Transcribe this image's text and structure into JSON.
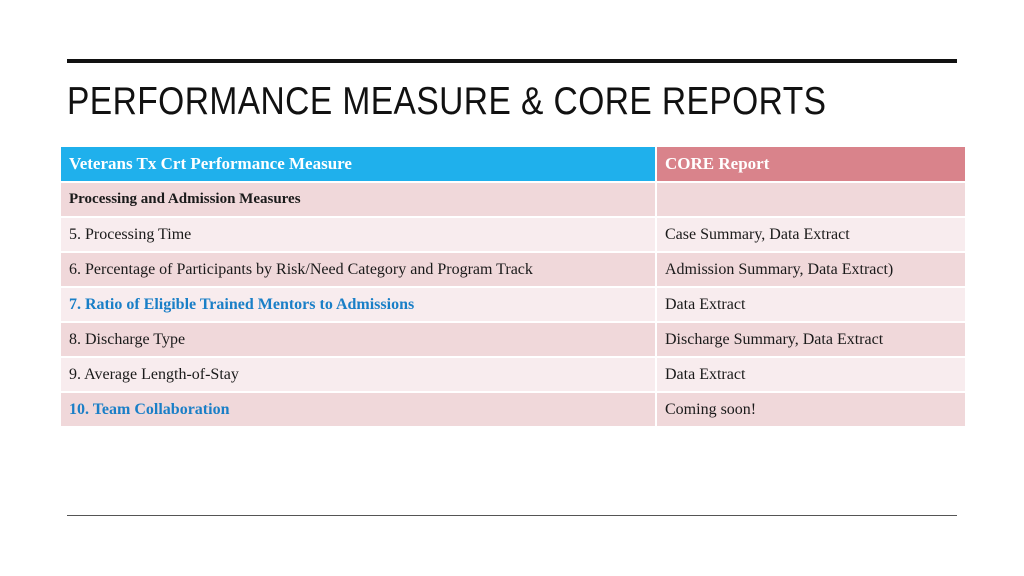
{
  "title": "PERFORMANCE MEASURE & CORE REPORTS",
  "table": {
    "headers": [
      "Veterans Tx Crt Performance Measure",
      "CORE Report"
    ],
    "section_label": "Processing and Admission Measures",
    "section_report": "",
    "rows": [
      {
        "measure": "5. Processing Time",
        "report": "Case Summary, Data Extract"
      },
      {
        "measure": "6. Percentage of Participants by Risk/Need Category and Program Track",
        "report": "Admission Summary, Data Extract)"
      },
      {
        "measure": "7. Ratio of Eligible Trained Mentors to Admissions",
        "report": "Data Extract"
      },
      {
        "measure": "8. Discharge Type",
        "report": "Discharge Summary, Data Extract"
      },
      {
        "measure": "9. Average Length-of-Stay",
        "report": "Data Extract"
      },
      {
        "measure": "10. Team Collaboration",
        "report": "Coming soon!"
      }
    ]
  },
  "colors": {
    "header_left": "#1fb0ec",
    "header_right": "#d9838b",
    "row_dark": "#f0d8da",
    "row_light": "#f8ecee",
    "link_text": "#1a7fc7"
  }
}
